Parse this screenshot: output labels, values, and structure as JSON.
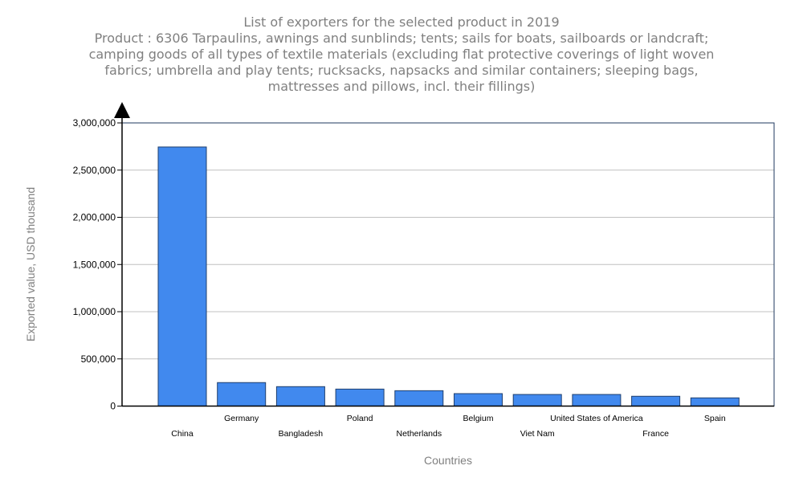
{
  "chart_data": {
    "type": "bar",
    "title": "List of exporters for the selected product in 2019",
    "subtitle_lines": [
      "Product : 6306 Tarpaulins, awnings and sunblinds; tents; sails for boats, sailboards or landcraft;",
      "camping goods of all types of textile materials (excluding flat protective coverings of light woven",
      "fabrics; umbrella and play tents; rucksacks, napsacks and similar containers; sleeping bags,",
      "mattresses and pillows, incl. their fillings)"
    ],
    "xlabel": "Countries",
    "ylabel": "Exported value, USD thousand",
    "ylim": [
      0,
      3000000
    ],
    "yticks": [
      0,
      500000,
      1000000,
      1500000,
      2000000,
      2500000,
      3000000
    ],
    "ytick_labels": [
      "0",
      "500,000",
      "1,000,000",
      "1,500,000",
      "2,000,000",
      "2,500,000",
      "3,000,000"
    ],
    "grid": true,
    "categories": [
      "China",
      "Germany",
      "Bangladesh",
      "Poland",
      "Netherlands",
      "Belgium",
      "Viet Nam",
      "United States of America",
      "France",
      "Spain"
    ],
    "values": [
      2745000,
      249000,
      206000,
      180000,
      163000,
      132000,
      123000,
      123000,
      104000,
      87000
    ],
    "bar_color": "#4189ee",
    "bar_border_color": "#1f3f6e"
  }
}
